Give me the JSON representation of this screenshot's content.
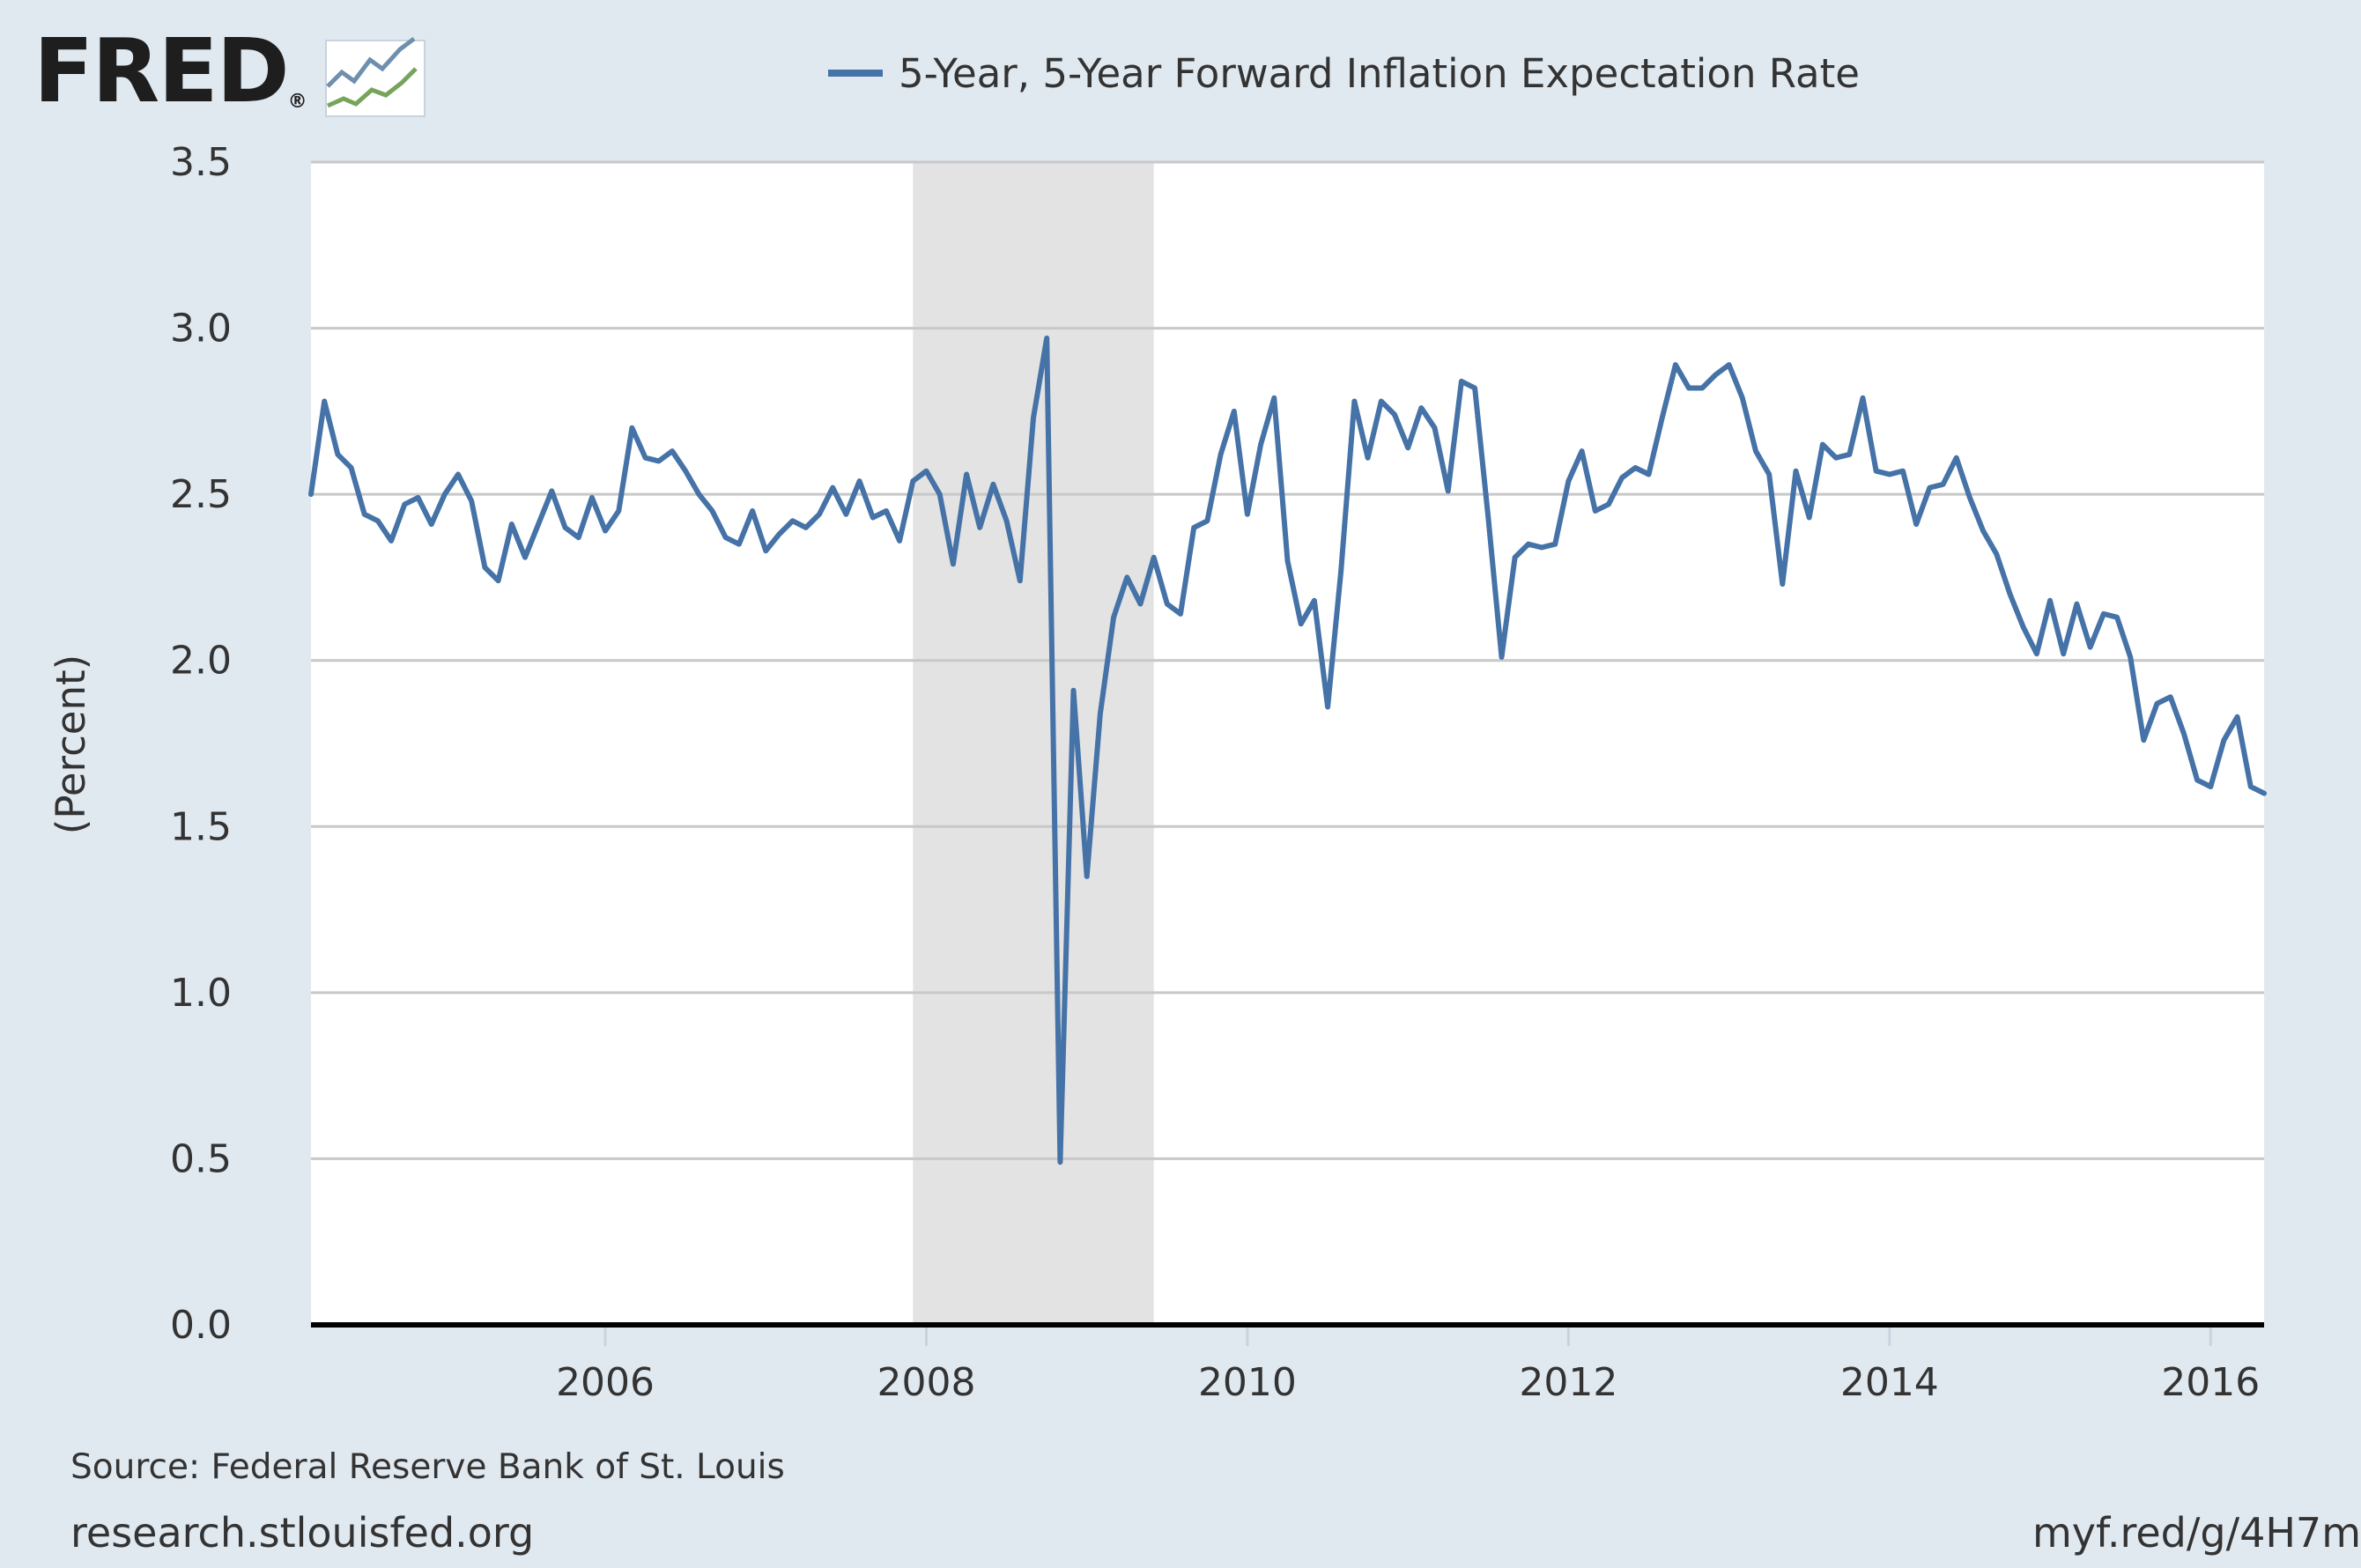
{
  "header": {
    "logo_text": "FRED",
    "logo_registered": "®",
    "logo_icon": "line-chart-icon",
    "legend_label": "5-Year, 5-Year Forward Inflation Expectation Rate"
  },
  "footer": {
    "source": "Source: Federal Reserve Bank of St. Louis",
    "site": "research.stlouisfed.org",
    "shortlink": "myf.red/g/4H7m"
  },
  "colors": {
    "series": "#4572a7",
    "background": "#e1e9f0",
    "plot_background": "#ffffff",
    "recession_shade": "#e3e3e3",
    "gridline": "#c8c8c8"
  },
  "chart_data": {
    "type": "line",
    "title": "",
    "xlabel": "",
    "ylabel": "(Percent)",
    "xlim": [
      "2004-03",
      "2016-05"
    ],
    "ylim": [
      0,
      3.5
    ],
    "y_ticks": [
      "0.0",
      "0.5",
      "1.0",
      "1.5",
      "2.0",
      "2.5",
      "3.0",
      "3.5"
    ],
    "x_ticks": [
      "2006",
      "2008",
      "2010",
      "2012",
      "2014",
      "2016"
    ],
    "grid": true,
    "legend_position": "top",
    "recessions": [
      {
        "start": "2007-12",
        "end": "2009-06"
      }
    ],
    "series": [
      {
        "name": "5-Year, 5-Year Forward Inflation Expectation Rate",
        "color": "#4572a7",
        "x": [
          "2004-03",
          "2004-04",
          "2004-05",
          "2004-06",
          "2004-07",
          "2004-08",
          "2004-09",
          "2004-10",
          "2004-11",
          "2004-12",
          "2005-01",
          "2005-02",
          "2005-03",
          "2005-04",
          "2005-05",
          "2005-06",
          "2005-07",
          "2005-08",
          "2005-09",
          "2005-10",
          "2005-11",
          "2005-12",
          "2006-01",
          "2006-02",
          "2006-03",
          "2006-04",
          "2006-05",
          "2006-06",
          "2006-07",
          "2006-08",
          "2006-09",
          "2006-10",
          "2006-11",
          "2006-12",
          "2007-01",
          "2007-02",
          "2007-03",
          "2007-04",
          "2007-05",
          "2007-06",
          "2007-07",
          "2007-08",
          "2007-09",
          "2007-10",
          "2007-11",
          "2007-12",
          "2008-01",
          "2008-02",
          "2008-03",
          "2008-04",
          "2008-05",
          "2008-06",
          "2008-07",
          "2008-08",
          "2008-09",
          "2008-10",
          "2008-11",
          "2008-12",
          "2009-01",
          "2009-02",
          "2009-03",
          "2009-04",
          "2009-05",
          "2009-06",
          "2009-07",
          "2009-08",
          "2009-09",
          "2009-10",
          "2009-11",
          "2009-12",
          "2010-01",
          "2010-02",
          "2010-03",
          "2010-04",
          "2010-05",
          "2010-06",
          "2010-07",
          "2010-08",
          "2010-09",
          "2010-10",
          "2010-11",
          "2010-12",
          "2011-01",
          "2011-02",
          "2011-03",
          "2011-04",
          "2011-05",
          "2011-06",
          "2011-07",
          "2011-08",
          "2011-09",
          "2011-10",
          "2011-11",
          "2011-12",
          "2012-01",
          "2012-02",
          "2012-03",
          "2012-04",
          "2012-05",
          "2012-06",
          "2012-07",
          "2012-08",
          "2012-09",
          "2012-10",
          "2012-11",
          "2012-12",
          "2013-01",
          "2013-02",
          "2013-03",
          "2013-04",
          "2013-05",
          "2013-06",
          "2013-07",
          "2013-08",
          "2013-09",
          "2013-10",
          "2013-11",
          "2013-12",
          "2014-01",
          "2014-02",
          "2014-03",
          "2014-04",
          "2014-05",
          "2014-06",
          "2014-07",
          "2014-08",
          "2014-09",
          "2014-10",
          "2014-11",
          "2014-12",
          "2015-01",
          "2015-02",
          "2015-03",
          "2015-04",
          "2015-05",
          "2015-06",
          "2015-07",
          "2015-08",
          "2015-09",
          "2015-10",
          "2015-11",
          "2015-12",
          "2016-01",
          "2016-02",
          "2016-03",
          "2016-04",
          "2016-05"
        ],
        "values": [
          2.5,
          2.78,
          2.62,
          2.58,
          2.44,
          2.42,
          2.36,
          2.47,
          2.49,
          2.41,
          2.5,
          2.56,
          2.48,
          2.28,
          2.24,
          2.41,
          2.31,
          2.41,
          2.51,
          2.4,
          2.37,
          2.49,
          2.39,
          2.45,
          2.7,
          2.61,
          2.6,
          2.63,
          2.57,
          2.5,
          2.45,
          2.37,
          2.35,
          2.45,
          2.33,
          2.38,
          2.42,
          2.4,
          2.44,
          2.52,
          2.44,
          2.54,
          2.43,
          2.45,
          2.36,
          2.54,
          2.57,
          2.5,
          2.29,
          2.56,
          2.4,
          2.53,
          2.42,
          2.24,
          2.73,
          2.97,
          0.49,
          1.91,
          1.35,
          1.84,
          2.13,
          2.25,
          2.17,
          2.31,
          2.17,
          2.14,
          2.4,
          2.42,
          2.62,
          2.75,
          2.44,
          2.65,
          2.79,
          2.3,
          2.11,
          2.18,
          1.86,
          2.27,
          2.78,
          2.61,
          2.78,
          2.74,
          2.64,
          2.76,
          2.7,
          2.51,
          2.84,
          2.82,
          2.43,
          2.01,
          2.31,
          2.35,
          2.34,
          2.35,
          2.54,
          2.63,
          2.45,
          2.47,
          2.55,
          2.58,
          2.56,
          2.73,
          2.89,
          2.82,
          2.82,
          2.86,
          2.89,
          2.79,
          2.63,
          2.56,
          2.23,
          2.57,
          2.43,
          2.65,
          2.61,
          2.62,
          2.79,
          2.57,
          2.56,
          2.57,
          2.41,
          2.52,
          2.53,
          2.61,
          2.49,
          2.39,
          2.32,
          2.2,
          2.1,
          2.02,
          2.18,
          2.02,
          2.17,
          2.04,
          2.14,
          2.13,
          2.01,
          1.76,
          1.87,
          1.89,
          1.78,
          1.64,
          1.62,
          1.76,
          1.83,
          1.62,
          1.6
        ]
      }
    ]
  }
}
